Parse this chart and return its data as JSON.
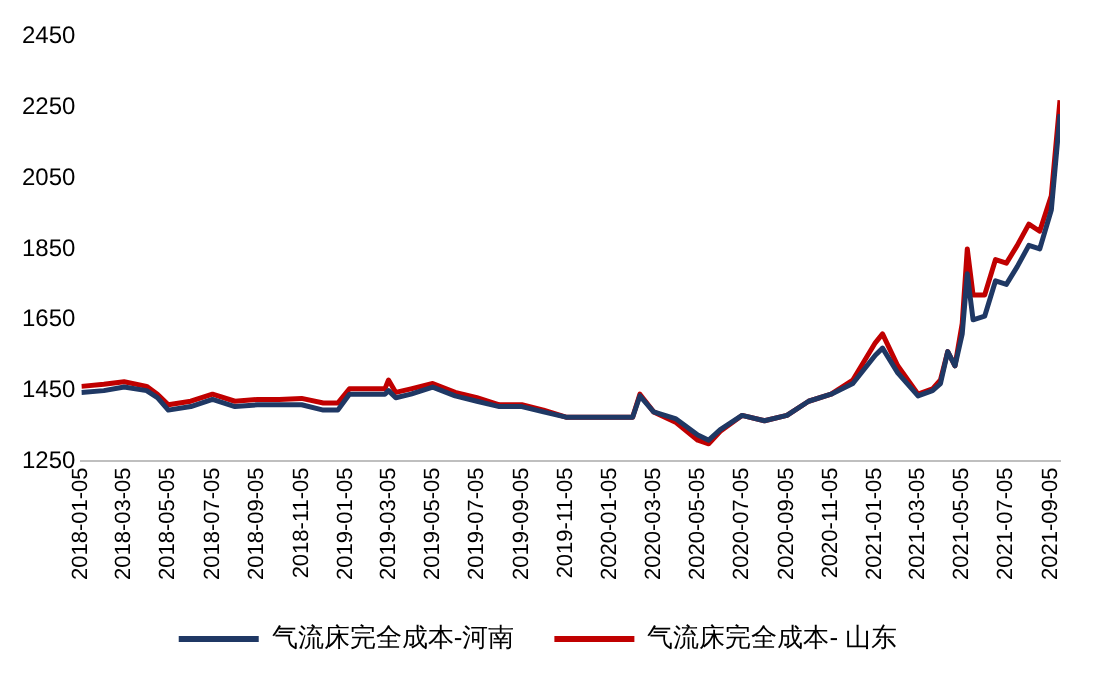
{
  "chart_data": {
    "type": "line",
    "x": [
      "2018-01-05",
      "2018-02-05",
      "2018-03-05",
      "2018-04-05",
      "2018-04-20",
      "2018-05-05",
      "2018-06-05",
      "2018-07-05",
      "2018-08-05",
      "2018-09-05",
      "2018-10-05",
      "2018-11-05",
      "2018-12-05",
      "2018-12-25",
      "2019-01-10",
      "2019-02-05",
      "2019-02-28",
      "2019-03-05",
      "2019-03-15",
      "2019-04-05",
      "2019-05-05",
      "2019-06-05",
      "2019-07-05",
      "2019-08-05",
      "2019-09-05",
      "2019-10-05",
      "2019-11-05",
      "2019-12-05",
      "2020-01-05",
      "2020-02-05",
      "2020-02-15",
      "2020-03-05",
      "2020-04-05",
      "2020-05-05",
      "2020-05-20",
      "2020-06-05",
      "2020-07-05",
      "2020-08-05",
      "2020-09-05",
      "2020-10-05",
      "2020-11-05",
      "2020-12-05",
      "2021-01-05",
      "2021-01-15",
      "2021-02-05",
      "2021-03-05",
      "2021-03-25",
      "2021-04-05",
      "2021-04-15",
      "2021-04-25",
      "2021-05-05",
      "2021-05-12",
      "2021-05-20",
      "2021-06-05",
      "2021-06-20",
      "2021-07-05",
      "2021-07-20",
      "2021-08-05",
      "2021-08-20",
      "2021-09-05",
      "2021-09-17"
    ],
    "series": [
      {
        "name": "气流床完全成本-河南",
        "color": "#1f3864",
        "values": [
          1445,
          1450,
          1460,
          1450,
          1430,
          1395,
          1405,
          1425,
          1405,
          1410,
          1410,
          1410,
          1395,
          1395,
          1440,
          1440,
          1440,
          1450,
          1430,
          1440,
          1460,
          1435,
          1420,
          1405,
          1405,
          1390,
          1375,
          1375,
          1375,
          1375,
          1435,
          1390,
          1370,
          1325,
          1310,
          1340,
          1380,
          1365,
          1380,
          1420,
          1440,
          1470,
          1550,
          1570,
          1500,
          1435,
          1450,
          1470,
          1560,
          1520,
          1610,
          1780,
          1650,
          1660,
          1760,
          1750,
          1800,
          1860,
          1850,
          1960,
          2230
        ]
      },
      {
        "name": "气流床完全成本- 山东",
        "color": "#c00000",
        "values": [
          1462,
          1468,
          1475,
          1462,
          1440,
          1410,
          1420,
          1440,
          1420,
          1425,
          1425,
          1428,
          1415,
          1415,
          1455,
          1455,
          1455,
          1480,
          1445,
          1455,
          1470,
          1445,
          1430,
          1410,
          1410,
          1395,
          1375,
          1375,
          1375,
          1375,
          1440,
          1390,
          1360,
          1310,
          1300,
          1335,
          1380,
          1365,
          1380,
          1420,
          1440,
          1480,
          1585,
          1610,
          1520,
          1440,
          1455,
          1480,
          1560,
          1520,
          1640,
          1850,
          1720,
          1720,
          1820,
          1810,
          1860,
          1920,
          1900,
          2000,
          2270
        ]
      }
    ],
    "ylim": [
      1250,
      2450
    ],
    "yticks": [
      1250,
      1450,
      1650,
      1850,
      2050,
      2250,
      2450
    ],
    "xlim": [
      "2018-01-05",
      "2021-09-17"
    ],
    "xticks": [
      "2018-01-05",
      "2018-03-05",
      "2018-05-05",
      "2018-07-05",
      "2018-09-05",
      "2018-11-05",
      "2019-01-05",
      "2019-03-05",
      "2019-05-05",
      "2019-07-05",
      "2019-09-05",
      "2019-11-05",
      "2020-01-05",
      "2020-03-05",
      "2020-05-05",
      "2020-07-05",
      "2020-09-05",
      "2020-11-05",
      "2021-01-05",
      "2021-03-05",
      "2021-05-05",
      "2021-07-05",
      "2021-09-05"
    ],
    "grid": false,
    "legend": "bottom",
    "marker": "none",
    "line_style": "solid"
  }
}
